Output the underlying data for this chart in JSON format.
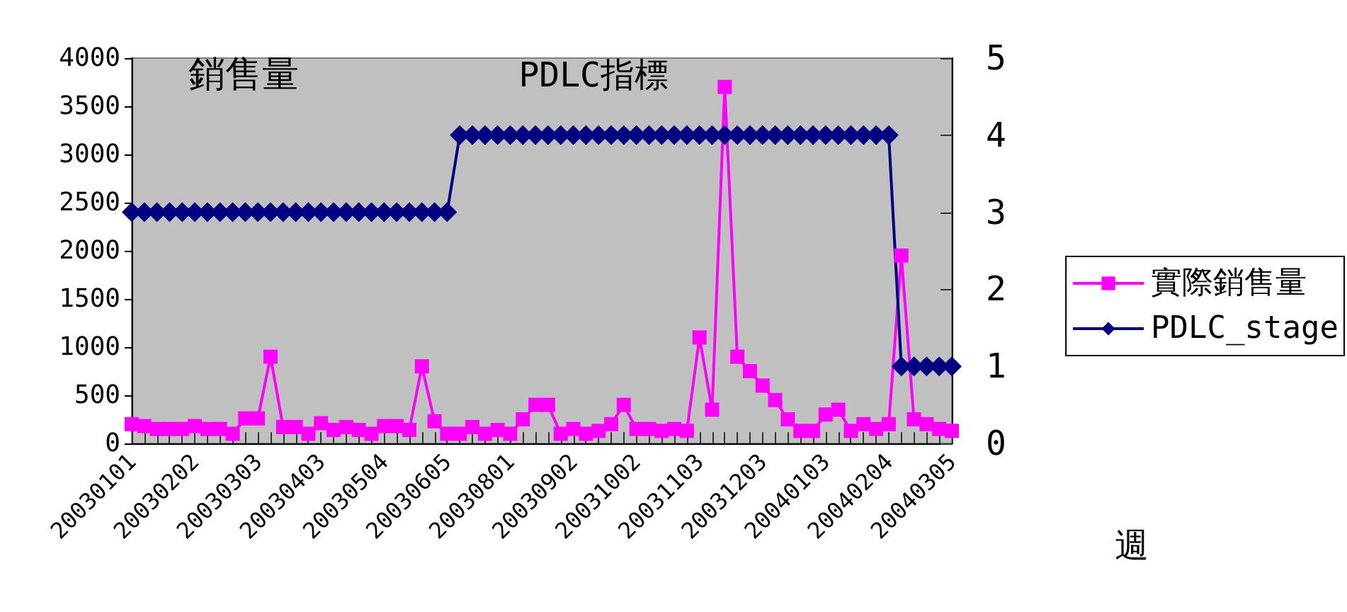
{
  "chart_data": {
    "type": "line",
    "ylabel": "銷售量",
    "y2label": "PDLC指標",
    "xlabel": "週",
    "categories": [
      "20030101",
      null,
      null,
      null,
      null,
      "20030202",
      null,
      null,
      null,
      null,
      "20030303",
      null,
      null,
      null,
      null,
      "20030403",
      null,
      null,
      null,
      null,
      "20030504",
      null,
      null,
      null,
      null,
      "20030605",
      null,
      null,
      null,
      null,
      "20030801",
      null,
      null,
      null,
      null,
      "20030902",
      null,
      null,
      null,
      null,
      "20031002",
      null,
      null,
      null,
      null,
      "20031103",
      null,
      null,
      null,
      null,
      "20031203",
      null,
      null,
      null,
      null,
      "20040103",
      null,
      null,
      null,
      null,
      "20040204",
      null,
      null,
      null,
      null,
      "20040305"
    ],
    "series": [
      {
        "name": "實際銷售量",
        "color": "#ff00ff",
        "marker": "square",
        "values": [
          200,
          180,
          150,
          150,
          150,
          180,
          150,
          150,
          100,
          260,
          260,
          900,
          170,
          170,
          100,
          210,
          140,
          170,
          140,
          100,
          180,
          180,
          140,
          800,
          230,
          100,
          100,
          170,
          100,
          140,
          100,
          250,
          400,
          400,
          100,
          150,
          100,
          130,
          200,
          400,
          150,
          150,
          130,
          150,
          130,
          1100,
          350,
          3700,
          900,
          750,
          600,
          450,
          250,
          130,
          130,
          300,
          350,
          130,
          200,
          150,
          200,
          1950,
          250,
          200,
          150,
          130
        ]
      },
      {
        "name": "PDLC_stage",
        "color": "#000080",
        "marker": "diamond",
        "axis": "y2",
        "values": [
          3,
          3,
          3,
          3,
          3,
          3,
          3,
          3,
          3,
          3,
          3,
          3,
          3,
          3,
          3,
          3,
          3,
          3,
          3,
          3,
          3,
          3,
          3,
          3,
          3,
          3,
          4,
          4,
          4,
          4,
          4,
          4,
          4,
          4,
          4,
          4,
          4,
          4,
          4,
          4,
          4,
          4,
          4,
          4,
          4,
          4,
          4,
          4,
          4,
          4,
          4,
          4,
          4,
          4,
          4,
          4,
          4,
          4,
          4,
          4,
          4,
          1,
          1,
          1,
          1,
          1
        ]
      }
    ],
    "ylim": [
      0,
      4000
    ],
    "yticks": [
      0,
      500,
      1000,
      1500,
      2000,
      2500,
      3000,
      3500,
      4000
    ],
    "y2lim": [
      0,
      5
    ],
    "y2ticks": [
      0,
      1,
      2,
      3,
      4,
      5
    ],
    "grid": false,
    "legend": "right"
  }
}
